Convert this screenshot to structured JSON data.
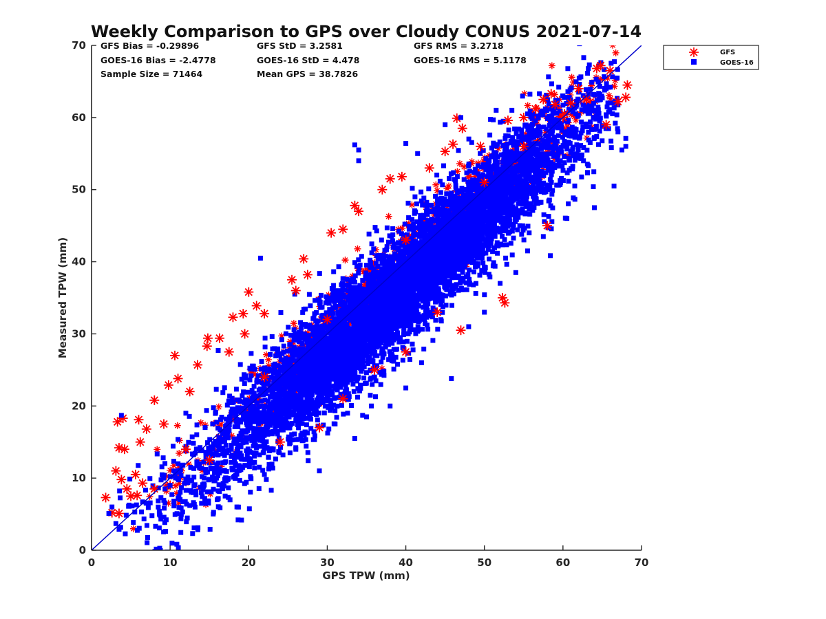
{
  "chart_data": {
    "type": "scatter",
    "title": "Weekly Comparison to GPS over Cloudy CONUS 2021-07-14",
    "xlabel": "GPS TPW (mm)",
    "ylabel": "Measured TPW (mm)",
    "xlim": [
      0,
      70
    ],
    "ylim": [
      0,
      70
    ],
    "xticks": [
      "0",
      "10",
      "20",
      "30",
      "40",
      "50",
      "60",
      "70"
    ],
    "yticks": [
      "0",
      "10",
      "20",
      "30",
      "40",
      "50",
      "60",
      "70"
    ],
    "grid": false,
    "legend_position": "outside top-right",
    "stats": {
      "row1": [
        "GFS Bias = -0.29896",
        "GFS StD = 3.2581",
        "GFS RMS = 3.2718"
      ],
      "row2": [
        "GOES-16 Bias = -2.4778",
        "GOES-16 StD = 4.478",
        "GOES-16 RMS = 5.1178"
      ],
      "row3": [
        "Sample Size = 71464",
        "Mean GPS = 38.7826"
      ]
    },
    "reference_line": {
      "x": [
        0,
        70
      ],
      "y": [
        0,
        70
      ],
      "color": "#0000cc"
    },
    "series": [
      {
        "name": "GFS",
        "marker": "asterisk",
        "color": "#ff0000",
        "bias": -0.29896,
        "std": 3.2581,
        "points": [
          [
            1.8,
            7.3
          ],
          [
            2.6,
            5.2
          ],
          [
            3.1,
            11.0
          ],
          [
            3.3,
            17.8
          ],
          [
            3.5,
            14.2
          ],
          [
            3.5,
            5.1
          ],
          [
            4.0,
            18.3
          ],
          [
            4.2,
            14.0
          ],
          [
            4.5,
            8.5
          ],
          [
            5.0,
            7.5
          ],
          [
            5.6,
            10.5
          ],
          [
            5.8,
            7.6
          ],
          [
            6.0,
            18.1
          ],
          [
            6.2,
            15.0
          ],
          [
            7.0,
            16.8
          ],
          [
            8.0,
            20.8
          ],
          [
            9.2,
            17.5
          ],
          [
            9.8,
            22.9
          ],
          [
            10.6,
            27.0
          ],
          [
            11.0,
            23.8
          ],
          [
            12.5,
            22.0
          ],
          [
            13.5,
            25.7
          ],
          [
            14.8,
            29.4
          ],
          [
            14.7,
            28.3
          ],
          [
            16.3,
            29.4
          ],
          [
            17.5,
            27.5
          ],
          [
            18.0,
            32.3
          ],
          [
            19.5,
            30.0
          ],
          [
            19.3,
            32.8
          ],
          [
            20.0,
            35.8
          ],
          [
            21.0,
            33.9
          ],
          [
            22.0,
            32.8
          ],
          [
            25.5,
            37.5
          ],
          [
            26.0,
            36.0
          ],
          [
            27.5,
            38.2
          ],
          [
            27.0,
            40.4
          ],
          [
            30.5,
            44.0
          ],
          [
            32.0,
            44.5
          ],
          [
            33.5,
            47.8
          ],
          [
            34.0,
            47.0
          ],
          [
            37.0,
            50.0
          ],
          [
            38.0,
            51.5
          ],
          [
            39.5,
            51.8
          ],
          [
            43.0,
            53.0
          ],
          [
            45.0,
            55.3
          ],
          [
            46.0,
            56.3
          ],
          [
            46.5,
            59.9
          ],
          [
            47.2,
            58.5
          ],
          [
            49.5,
            56.0
          ],
          [
            53.0,
            59.6
          ],
          [
            55.0,
            60.0
          ],
          [
            56.5,
            61.2
          ],
          [
            57.5,
            62.5
          ],
          [
            58.5,
            63.3
          ],
          [
            59.0,
            61.8
          ],
          [
            60.2,
            60.5
          ],
          [
            61.0,
            62.0
          ],
          [
            62.0,
            64.0
          ],
          [
            63.0,
            62.5
          ],
          [
            64.3,
            66.8
          ],
          [
            64.8,
            67.2
          ],
          [
            65.5,
            59.0
          ],
          [
            66.0,
            66.5
          ],
          [
            67.0,
            62.2
          ],
          [
            68.2,
            64.5
          ],
          [
            68.0,
            62.8
          ],
          [
            58.0,
            45.0
          ],
          [
            52.3,
            35.0
          ],
          [
            52.6,
            34.3
          ],
          [
            40.0,
            27.5
          ],
          [
            36.0,
            25.0
          ],
          [
            44.0,
            33.0
          ],
          [
            47.0,
            30.5
          ],
          [
            29.0,
            17.0
          ],
          [
            32.0,
            21.0
          ],
          [
            24.0,
            15.0
          ],
          [
            15.0,
            12.5
          ],
          [
            10.0,
            9.0
          ],
          [
            8.0,
            8.5
          ],
          [
            6.5,
            9.3
          ],
          [
            3.8,
            9.8
          ],
          [
            12.0,
            14.0
          ],
          [
            22.0,
            24.0
          ],
          [
            30.0,
            32.0
          ],
          [
            40.0,
            43.0
          ],
          [
            50.0,
            51.0
          ],
          [
            55.0,
            56.0
          ],
          [
            60.0,
            60.0
          ]
        ]
      },
      {
        "name": "GOES-16",
        "marker": "square",
        "color": "#0000ff",
        "bias": -2.4778,
        "std": 4.478,
        "points": [
          [
            2.2,
            5.1
          ],
          [
            2.6,
            6.0
          ],
          [
            3.5,
            2.9
          ],
          [
            3.8,
            18.7
          ],
          [
            4.8,
            6.1
          ],
          [
            5.5,
            5.3
          ],
          [
            6.5,
            6.7
          ],
          [
            10.0,
            9.0
          ],
          [
            12.0,
            19.0
          ],
          [
            12.5,
            6.2
          ],
          [
            18.5,
            6.0
          ],
          [
            21.5,
            40.5
          ],
          [
            30.0,
            21.5
          ],
          [
            34.5,
            18.7
          ],
          [
            33.5,
            15.5
          ],
          [
            29.0,
            11.0
          ],
          [
            30.2,
            16.8
          ],
          [
            33.5,
            56.2
          ],
          [
            34.0,
            55.5
          ],
          [
            34.0,
            54.0
          ],
          [
            40.0,
            56.4
          ],
          [
            41.5,
            55.0
          ],
          [
            45.0,
            59.0
          ],
          [
            47.0,
            60.0
          ],
          [
            51.5,
            61.0
          ],
          [
            53.5,
            61.0
          ],
          [
            55.5,
            60.5
          ],
          [
            59.0,
            59.5
          ],
          [
            60.0,
            63.0
          ],
          [
            65.5,
            64.0
          ],
          [
            67.0,
            58.0
          ],
          [
            67.5,
            55.5
          ],
          [
            68.0,
            56.0
          ],
          [
            68.0,
            57.1
          ],
          [
            66.5,
            50.5
          ],
          [
            64.0,
            47.5
          ],
          [
            60.5,
            46.0
          ],
          [
            57.5,
            43.5
          ],
          [
            55.5,
            41.5
          ],
          [
            54.0,
            38.5
          ],
          [
            52.0,
            37.0
          ],
          [
            50.0,
            33.0
          ],
          [
            48.0,
            31.0
          ],
          [
            45.8,
            23.8
          ],
          [
            42.0,
            26.0
          ],
          [
            40.0,
            22.5
          ],
          [
            38.0,
            20.0
          ],
          [
            35.0,
            18.5
          ],
          [
            31.0,
            17.5
          ],
          [
            26.0,
            14.0
          ],
          [
            22.0,
            10.5
          ],
          [
            16.0,
            7.0
          ],
          [
            14.0,
            6.5
          ]
        ]
      }
    ]
  },
  "legend": {
    "items": [
      {
        "label": "GFS",
        "marker": "asterisk",
        "color": "#ff0000"
      },
      {
        "label": "GOES-16",
        "marker": "square",
        "color": "#0000ff"
      }
    ]
  }
}
